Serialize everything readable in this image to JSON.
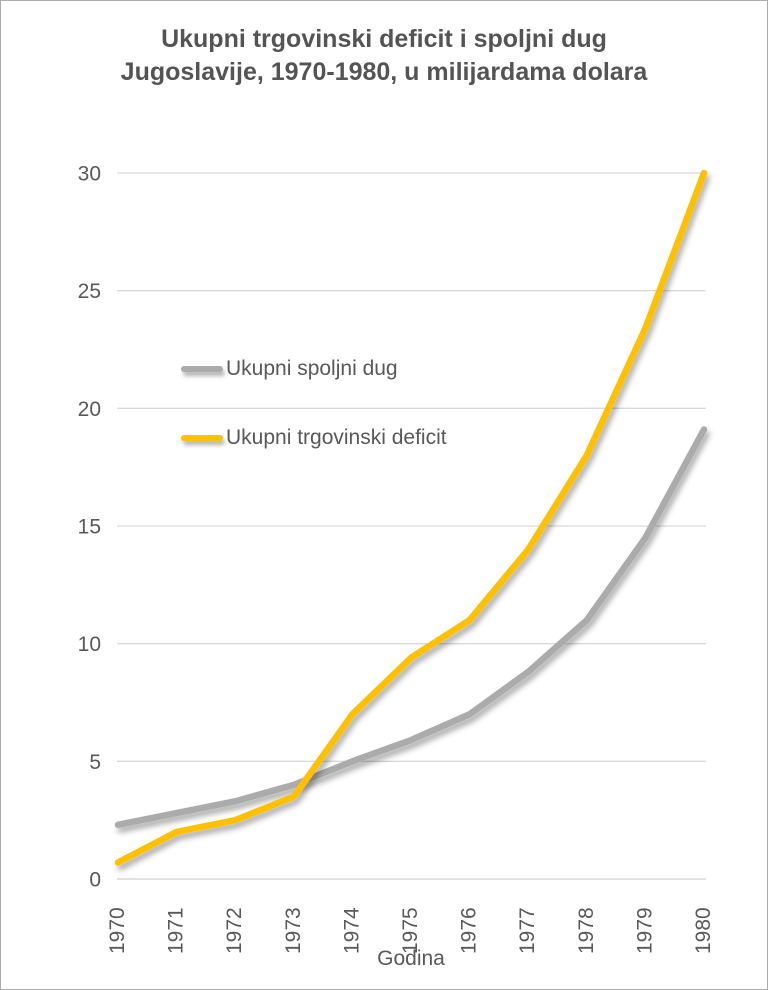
{
  "page": {
    "background": "#FFFFFF",
    "border_color": "#ABABAB"
  },
  "chart_data": {
    "type": "line",
    "title": "Ukupni trgovinski deficit i spoljni dug Jugoslavije, 1970-1980, u milijardama dolara",
    "title_lines": [
      "Ukupni trgovinski deficit i spoljni dug",
      "Jugoslavije, 1970-1980, u milijardama dolara"
    ],
    "xlabel": "Godina",
    "ylabel": "",
    "categories": [
      "1970",
      "1971",
      "1972",
      "1973",
      "1974",
      "1975",
      "1976",
      "1977",
      "1978",
      "1979",
      "1980"
    ],
    "series": [
      {
        "name": "Ukupni spoljni dug",
        "color": "#ABABAB",
        "values": [
          2.3,
          2.8,
          3.3,
          4.0,
          5.0,
          5.9,
          7.0,
          8.8,
          11.0,
          14.5,
          19.1
        ]
      },
      {
        "name": "Ukupni trgovinski deficit",
        "color": "#FFC000",
        "values": [
          0.7,
          2.0,
          2.5,
          3.5,
          7.0,
          9.4,
          11.0,
          14.0,
          18.0,
          23.4,
          30.0
        ]
      }
    ],
    "y_ticks": [
      0,
      5,
      10,
      15,
      20,
      25,
      30
    ],
    "ylim": [
      0,
      30
    ],
    "grid": "horizontal",
    "legend_position": "inside-left",
    "colors": {
      "gridline": "#D9D9D9",
      "axis_line": "#CFCFCF",
      "tick_label": "#595959",
      "title": "#545454"
    }
  }
}
